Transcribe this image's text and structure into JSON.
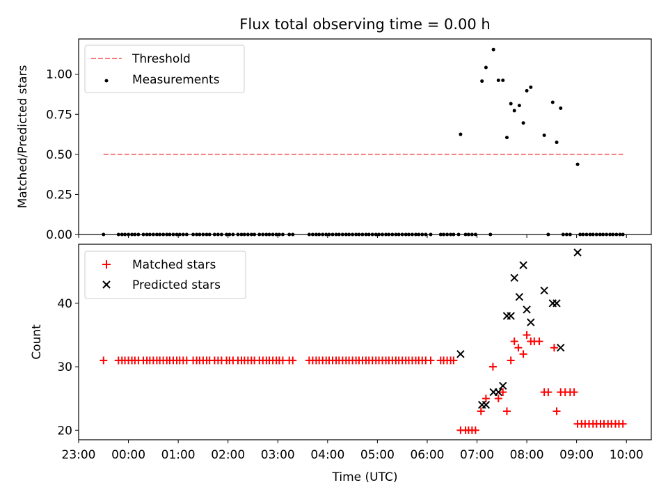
{
  "chart_data": [
    {
      "type": "scatter",
      "title": "Flux total observing time = 0.00 h",
      "xlabel": "",
      "ylabel": "Matched/Predicted stars",
      "xlim": [
        -1.0,
        10.5
      ],
      "ylim": [
        0.0,
        1.22
      ],
      "yticks": [
        0.0,
        0.25,
        0.5,
        0.75,
        1.0
      ],
      "ytick_labels": [
        "0.00",
        "0.25",
        "0.50",
        "0.75",
        "1.00"
      ],
      "legend_position": "upper-left",
      "threshold": {
        "name": "Threshold",
        "value": 0.5,
        "x": [
          -0.5,
          9.97
        ],
        "color": "#f47c7c"
      },
      "series": [
        {
          "name": "Measurements",
          "color": "#000000",
          "marker": "dot",
          "zero_x": [
            -0.5,
            -0.2,
            -0.13,
            -0.07,
            0.0,
            0.07,
            0.13,
            0.2,
            0.3,
            0.37,
            0.43,
            0.5,
            0.57,
            0.63,
            0.7,
            0.77,
            0.83,
            0.9,
            0.97,
            1.03,
            1.1,
            1.17,
            1.3,
            1.37,
            1.43,
            1.5,
            1.57,
            1.63,
            1.73,
            1.8,
            1.87,
            1.97,
            2.03,
            2.1,
            2.2,
            2.27,
            2.33,
            2.4,
            2.47,
            2.53,
            2.63,
            2.7,
            2.77,
            2.83,
            2.9,
            2.97,
            3.03,
            3.1,
            3.23,
            3.3,
            3.63,
            3.7,
            3.77,
            3.83,
            3.9,
            3.97,
            4.03,
            4.1,
            4.17,
            4.23,
            4.3,
            4.37,
            4.43,
            4.5,
            4.57,
            4.63,
            4.7,
            4.77,
            4.83,
            4.9,
            4.97,
            5.03,
            5.1,
            5.17,
            5.23,
            5.3,
            5.37,
            5.43,
            5.5,
            5.57,
            5.63,
            5.7,
            5.77,
            5.83,
            5.9,
            5.97,
            6.07,
            6.27,
            6.33,
            6.4,
            6.47,
            6.53,
            6.63,
            6.77,
            6.83,
            6.9,
            6.97,
            7.27,
            8.43,
            8.73,
            8.8,
            8.87,
            9.07,
            9.13,
            9.2,
            9.27,
            9.33,
            9.4,
            9.47,
            9.53,
            9.6,
            9.67,
            9.73,
            9.8,
            9.87,
            9.93
          ],
          "x": [
            6.67,
            7.1,
            7.18,
            7.33,
            7.43,
            7.52,
            7.6,
            7.68,
            7.75,
            7.85,
            7.93,
            8.0,
            8.08,
            8.35,
            8.52,
            8.6,
            8.68,
            9.02
          ],
          "y": [
            0.625,
            0.957,
            1.042,
            1.154,
            0.962,
            0.962,
            0.605,
            0.816,
            0.773,
            0.805,
            0.696,
            0.897,
            0.919,
            0.619,
            0.825,
            0.575,
            0.788,
            0.438
          ]
        }
      ]
    },
    {
      "type": "scatter",
      "xlabel": "Time (UTC)",
      "ylabel": "Count",
      "xlim": [
        -1.0,
        10.5
      ],
      "ylim": [
        18.5,
        49.3
      ],
      "yticks": [
        20,
        30,
        40
      ],
      "xticks": [
        -1,
        0,
        1,
        2,
        3,
        4,
        5,
        6,
        7,
        8,
        9,
        10
      ],
      "xtick_labels": [
        "23:00",
        "00:00",
        "01:00",
        "02:00",
        "03:00",
        "04:00",
        "05:00",
        "06:00",
        "07:00",
        "08:00",
        "09:00",
        "10:00"
      ],
      "legend_position": "upper-left",
      "series": [
        {
          "name": "Matched stars",
          "color": "#ff0000",
          "marker": "plus",
          "x": [
            6.67,
            6.77,
            6.83,
            6.9,
            6.97,
            7.08,
            7.18,
            7.32,
            7.43,
            7.52,
            7.6,
            7.68,
            7.75,
            7.83,
            7.93,
            8.0,
            8.08,
            8.15,
            8.25,
            8.35,
            8.43,
            8.55,
            8.6,
            8.68,
            8.77,
            8.87,
            8.95,
            9.02,
            9.1,
            9.17,
            9.25,
            9.33,
            9.4,
            9.48,
            9.55,
            9.63,
            9.7,
            9.78,
            9.85,
            9.93
          ],
          "y": [
            20,
            20,
            20,
            20,
            20,
            23,
            25,
            30,
            25,
            26,
            23,
            31,
            34,
            33,
            32,
            35,
            34,
            34,
            34,
            26,
            26,
            33,
            23,
            26,
            26,
            26,
            26,
            21,
            21,
            21,
            21,
            21,
            21,
            21,
            21,
            21,
            21,
            21,
            21,
            21
          ],
          "constant_value": 31,
          "constant_x": [
            -0.5,
            -0.2,
            -0.13,
            -0.07,
            0.0,
            0.07,
            0.13,
            0.2,
            0.3,
            0.37,
            0.43,
            0.5,
            0.57,
            0.63,
            0.7,
            0.77,
            0.83,
            0.9,
            0.97,
            1.03,
            1.1,
            1.17,
            1.3,
            1.37,
            1.43,
            1.5,
            1.57,
            1.63,
            1.73,
            1.8,
            1.87,
            1.97,
            2.03,
            2.1,
            2.2,
            2.27,
            2.33,
            2.4,
            2.47,
            2.53,
            2.63,
            2.7,
            2.77,
            2.83,
            2.9,
            2.97,
            3.03,
            3.1,
            3.23,
            3.3,
            3.63,
            3.7,
            3.77,
            3.83,
            3.9,
            3.97,
            4.03,
            4.1,
            4.17,
            4.23,
            4.3,
            4.37,
            4.43,
            4.5,
            4.57,
            4.63,
            4.7,
            4.77,
            4.83,
            4.9,
            4.97,
            5.03,
            5.1,
            5.17,
            5.23,
            5.3,
            5.37,
            5.43,
            5.5,
            5.57,
            5.63,
            5.7,
            5.77,
            5.83,
            5.9,
            5.97,
            6.07,
            6.27,
            6.33,
            6.4,
            6.47,
            6.53
          ]
        },
        {
          "name": "Predicted stars",
          "color": "#000000",
          "marker": "x",
          "x": [
            6.67,
            7.1,
            7.18,
            7.33,
            7.43,
            7.52,
            7.6,
            7.68,
            7.75,
            7.85,
            7.93,
            8.0,
            8.08,
            8.35,
            8.52,
            8.6,
            8.68,
            9.02
          ],
          "y": [
            32,
            24,
            24,
            26,
            26,
            27,
            38,
            38,
            44,
            41,
            46,
            39,
            37,
            42,
            40,
            40,
            33,
            48
          ]
        }
      ]
    }
  ]
}
